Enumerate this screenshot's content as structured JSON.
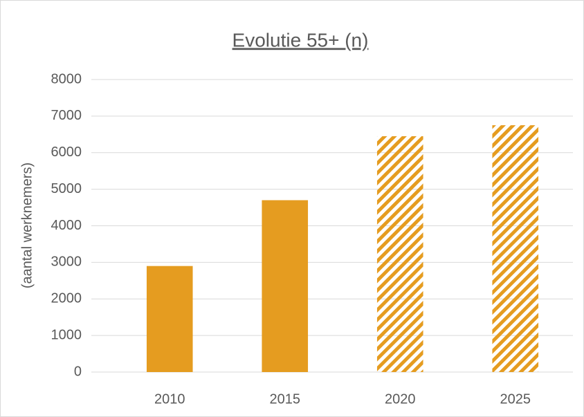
{
  "chart_data": {
    "type": "bar",
    "title": "Evolutie 55+ (n)",
    "y_label": "(aantal werknemers)",
    "categories": [
      "2010",
      "2015",
      "2020",
      "2025"
    ],
    "values": [
      2900,
      4700,
      6450,
      6750
    ],
    "hatched": [
      false,
      false,
      true,
      true
    ],
    "color": "#e59c20",
    "ylim": [
      0,
      8000
    ],
    "yticks": [
      0,
      1000,
      2000,
      3000,
      4000,
      5000,
      6000,
      7000,
      8000
    ],
    "grid": true
  }
}
